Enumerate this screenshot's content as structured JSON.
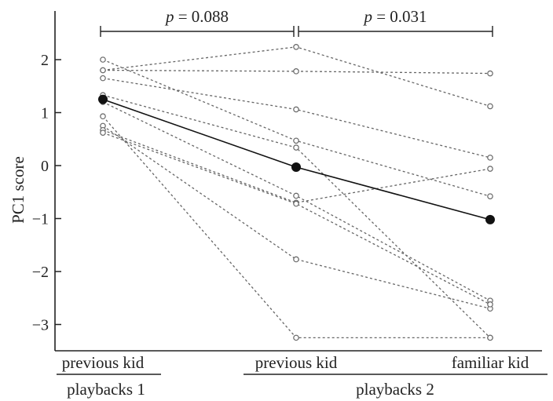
{
  "chart_data": {
    "type": "line",
    "ylabel": "PC1 score",
    "ylim": [
      -3.5,
      3.0
    ],
    "yticks": [
      -3,
      -2,
      -1,
      0,
      1,
      2
    ],
    "categories": [
      "previous kid",
      "previous kid",
      "familiar kid"
    ],
    "groups": [
      {
        "label": "playbacks 1",
        "categories": [
          0
        ]
      },
      {
        "label": "playbacks 2",
        "categories": [
          1,
          2
        ]
      }
    ],
    "comparisons": [
      {
        "from": 0,
        "to": 1,
        "p_symbol": "p",
        "p_text": " = 0.088"
      },
      {
        "from": 1,
        "to": 2,
        "p_symbol": "p",
        "p_text": " = 0.031"
      }
    ],
    "mean_series": {
      "values": [
        1.25,
        -0.03,
        -1.02
      ]
    },
    "individual_series": [
      {
        "values": [
          2.0,
          0.47,
          -0.58
        ]
      },
      {
        "values": [
          1.8,
          1.78,
          1.74
        ]
      },
      {
        "values": [
          1.8,
          2.24,
          1.12
        ]
      },
      {
        "values": [
          1.65,
          1.06,
          0.15
        ]
      },
      {
        "values": [
          1.33,
          0.34,
          -3.25
        ]
      },
      {
        "values": [
          1.2,
          -0.57,
          -2.55
        ]
      },
      {
        "values": [
          0.93,
          -3.25,
          -3.25
        ]
      },
      {
        "values": [
          0.75,
          -1.77,
          -2.7
        ]
      },
      {
        "values": [
          0.67,
          -0.7,
          -0.06
        ]
      },
      {
        "values": [
          0.62,
          -0.72,
          -2.62
        ]
      }
    ],
    "colors": {
      "mean": "#111111",
      "individual": "#666666",
      "axis": "#222222"
    }
  }
}
